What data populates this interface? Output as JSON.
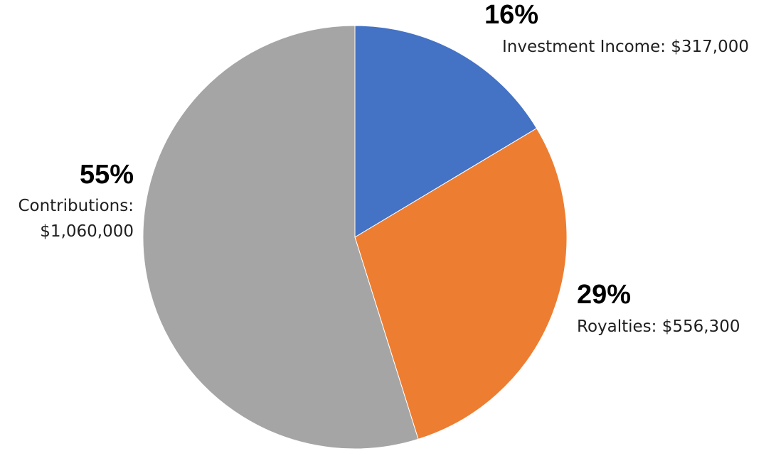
{
  "chart_data": {
    "type": "pie",
    "title": "",
    "slices": [
      {
        "name": "Investment Income",
        "value": 317000,
        "value_label": "$317,000",
        "percent": "16%",
        "color": "#4472c4"
      },
      {
        "name": "Royalties",
        "value": 556300,
        "value_label": "$556,300",
        "percent": "29%",
        "color": "#ed7d31"
      },
      {
        "name": "Contributions",
        "value": 1060000,
        "value_label": "$1,060,000",
        "percent": "55%",
        "color": "#a5a5a5"
      }
    ],
    "labels": {
      "investment": {
        "percent": "16%",
        "text": "Investment Income: $317,000"
      },
      "royalties": {
        "percent": "29%",
        "text": "Royalties: $556,300"
      },
      "contributions": {
        "percent": "55%",
        "line1": "Contributions:",
        "line2": "$1,060,000"
      }
    },
    "legend": "none",
    "start_angle": "12 o'clock",
    "direction": "clockwise"
  }
}
